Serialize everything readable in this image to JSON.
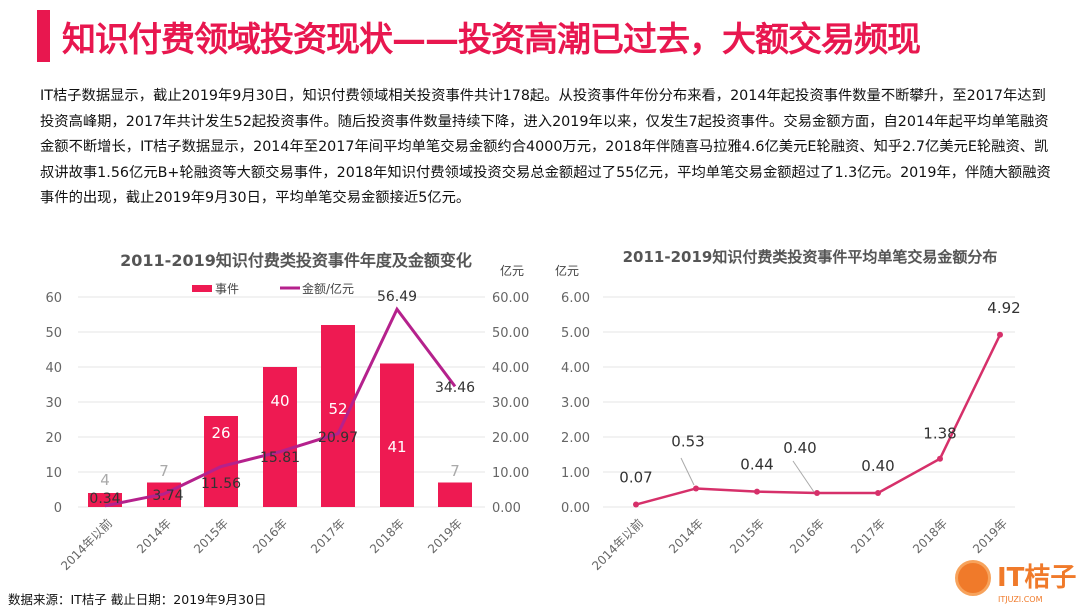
{
  "header": {
    "title": "知识付费领域投资现状——投资高潮已过去，大额交易频现"
  },
  "body": {
    "paragraph": "IT桔子数据显示，截止2019年9月30日，知识付费领域相关投资事件共计178起。从投资事件年份分布来看，2014年起投资事件数量不断攀升，至2017年达到投资高峰期，2017年共计发生52起投资事件。随后投资事件数量持续下降，进入2019年以来，仅发生7起投资事件。交易金额方面，自2014年起平均单笔融资金额不断增长，IT桔子数据显示，2014年至2017年间平均单笔交易金额约合4000万元，2018年伴随喜马拉雅4.6亿美元E轮融资、知乎2.7亿美元E轮融资、凯叔讲故事1.56亿元B+轮融资等大额交易事件，2018年知识付费领域投资交易总金额超过了55亿元，平均单笔交易金额超过了1.3亿元。2019年，伴随大额融资事件的出现，截止2019年9月30日，平均单笔交易金额接近5亿元。"
  },
  "footer": {
    "source": "数据来源：IT桔子 截止日期：2019年9月30日"
  },
  "logo": {
    "text": "IT桔子",
    "sub": "ITJUZI.COM"
  },
  "chart_data": [
    {
      "type": "bar+line",
      "title": "2011-2019知识付费类投资事件年度及金额变化",
      "categories": [
        "2014年以前",
        "2014年",
        "2015年",
        "2016年",
        "2017年",
        "2018年",
        "2019年"
      ],
      "series": [
        {
          "name": "事件",
          "type": "bar",
          "axis": "left",
          "values": [
            4,
            7,
            26,
            40,
            52,
            41,
            7
          ],
          "color": "#ee1a52"
        },
        {
          "name": "金额/亿元",
          "type": "line",
          "axis": "right",
          "values": [
            0.34,
            3.74,
            11.56,
            15.81,
            20.97,
            56.49,
            34.46
          ],
          "color": "#b5218c"
        }
      ],
      "left_ticks": [
        "0",
        "10",
        "20",
        "30",
        "40",
        "50",
        "60"
      ],
      "right_ticks": [
        "0.00",
        "10.00",
        "20.00",
        "30.00",
        "40.00",
        "50.00",
        "60.00"
      ],
      "ylim": [
        0,
        60
      ],
      "right_unit": "亿元",
      "legend": "top",
      "grid": true
    },
    {
      "type": "line",
      "title": "2011-2019知识付费类投资事件平均单笔交易金额分布",
      "categories": [
        "2014年以前",
        "2014年",
        "2015年",
        "2016年",
        "2017年",
        "2018年",
        "2019年"
      ],
      "series": [
        {
          "name": "平均单笔交易金额",
          "values": [
            0.07,
            0.53,
            0.44,
            0.4,
            0.4,
            1.38,
            4.92
          ],
          "labels": [
            "0.07",
            "0.53",
            "0.44",
            "0.40",
            "0.40",
            "1.38",
            "4.92"
          ],
          "color": "#d6306a"
        }
      ],
      "ticks": [
        "0.00",
        "1.00",
        "2.00",
        "3.00",
        "4.00",
        "5.00",
        "6.00"
      ],
      "ylim": [
        0,
        6
      ],
      "unit": "亿元",
      "grid": true
    }
  ]
}
